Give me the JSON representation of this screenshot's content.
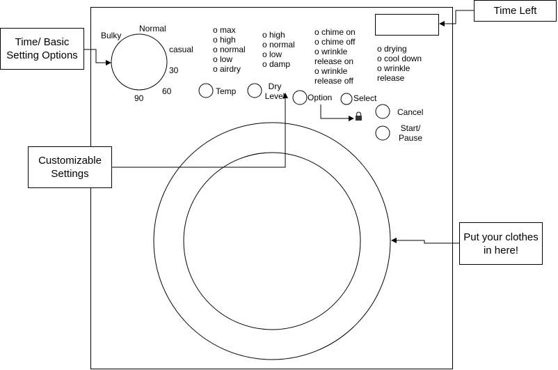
{
  "callouts": {
    "time_left": "Time Left",
    "time_basic": [
      "Time/ Basic",
      "Setting Options"
    ],
    "customizable": [
      "Customizable",
      "Settings"
    ],
    "clothes": [
      "Put your clothes",
      "in here!"
    ]
  },
  "dial": {
    "bulky": "Bulky",
    "normal": "Normal",
    "casual": "casual",
    "t30": "30",
    "t60": "60",
    "t90": "90"
  },
  "temp_options": [
    "o  max",
    "o  high",
    "o  normal",
    "o  low",
    "o  airdry"
  ],
  "dry_options": [
    "o  high",
    "o  normal",
    "o  low",
    "o  damp"
  ],
  "option_options": [
    "o  chime on",
    "o  chime off",
    "o  wrinkle",
    "release on",
    "o  wrinkle",
    "release off"
  ],
  "status_options": [
    "o  drying",
    "o  cool down",
    "o  wrinkle",
    "release"
  ],
  "buttons": {
    "temp": "Temp",
    "dry_level": [
      "Dry",
      "Level"
    ],
    "option": "Option",
    "select": "Select",
    "cancel": "Cancel",
    "start_pause": [
      "Start/",
      "Pause"
    ]
  }
}
